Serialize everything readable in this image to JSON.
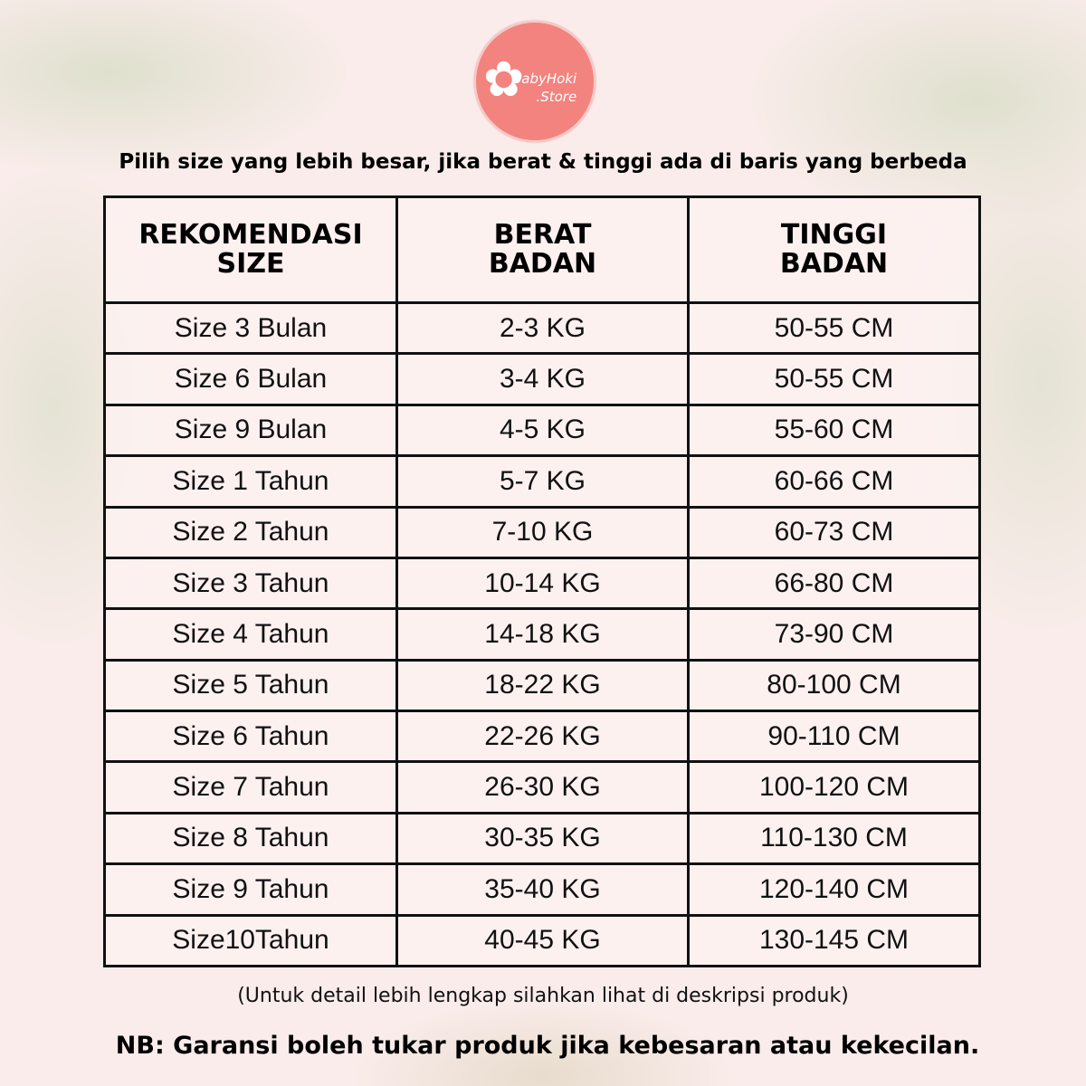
{
  "brand": {
    "logo_text_line1": "BabyHoki",
    "logo_text_line2": ".Store",
    "logo_color": "#f2837e"
  },
  "instruction": "Pilih size yang lebih besar, jika berat & tinggi ada di baris yang berbeda",
  "table": {
    "headers": [
      [
        "REKOMENDASI",
        "SIZE"
      ],
      [
        "BERAT",
        "BADAN"
      ],
      [
        "TINGGI",
        "BADAN"
      ]
    ],
    "rows": [
      [
        "Size 3 Bulan",
        "2-3 KG",
        "50-55 CM"
      ],
      [
        "Size 6 Bulan",
        "3-4 KG",
        "50-55 CM"
      ],
      [
        "Size 9 Bulan",
        "4-5 KG",
        "55-60 CM"
      ],
      [
        "Size 1 Tahun",
        "5-7 KG",
        "60-66 CM"
      ],
      [
        "Size 2 Tahun",
        "7-10 KG",
        "60-73 CM"
      ],
      [
        "Size 3 Tahun",
        "10-14 KG",
        "66-80 CM"
      ],
      [
        "Size 4 Tahun",
        "14-18 KG",
        "73-90 CM"
      ],
      [
        "Size 5 Tahun",
        "18-22 KG",
        "80-100 CM"
      ],
      [
        "Size 6 Tahun",
        "22-26 KG",
        "90-110 CM"
      ],
      [
        "Size 7 Tahun",
        "26-30 KG",
        "100-120 CM"
      ],
      [
        "Size 8 Tahun",
        "30-35 KG",
        "110-130 CM"
      ],
      [
        "Size 9 Tahun",
        "35-40 KG",
        "120-140 CM"
      ],
      [
        "Size10Tahun",
        "40-45 KG",
        "130-145 CM"
      ]
    ]
  },
  "note": "(Untuk detail lebih lengkap silahkan lihat di deskripsi produk)",
  "nb": "NB: Garansi boleh tukar produk jika kebesaran atau kekecilan."
}
